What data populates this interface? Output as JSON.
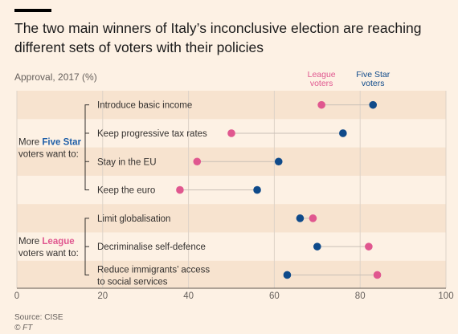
{
  "header": {
    "title": "The two main winners of Italy’s inconclusive election are reaching different sets of voters with their policies",
    "subtitle": "Approval, 2017 (%)"
  },
  "legend": {
    "league": [
      "League",
      "voters"
    ],
    "five_star": [
      "Five Star",
      "voters"
    ]
  },
  "groups": [
    {
      "prefix": "More ",
      "party": "Five Star",
      "rest": "voters want to:",
      "party_color": "#1f5fa8"
    },
    {
      "prefix": "More ",
      "party": "League",
      "rest": "voters want to:",
      "party_color": "#e0578f"
    }
  ],
  "colors": {
    "league": "#e0578f",
    "five_star": "#0f4a8a",
    "band": "#f7e3cf",
    "grid": "#ddd2c7",
    "connector": "#c9bfb6"
  },
  "footer": {
    "source": "Source: CISE",
    "credit": "© FT"
  },
  "chart_data": {
    "type": "dot",
    "xlim": [
      0,
      100
    ],
    "ticks": [
      0,
      20,
      40,
      60,
      80,
      100
    ],
    "series": [
      {
        "name": "League voters",
        "key": "league"
      },
      {
        "name": "Five Star voters",
        "key": "five_star"
      }
    ],
    "rows": [
      {
        "label": [
          "Introduce basic income"
        ],
        "league": 71,
        "five_star": 83,
        "group": 0
      },
      {
        "label": [
          "Keep progressive tax rates"
        ],
        "league": 50,
        "five_star": 76,
        "group": 0
      },
      {
        "label": [
          "Stay in the EU"
        ],
        "league": 42,
        "five_star": 61,
        "group": 0
      },
      {
        "label": [
          "Keep the euro"
        ],
        "league": 38,
        "five_star": 56,
        "group": 0
      },
      {
        "label": [
          "Limit globalisation"
        ],
        "league": 69,
        "five_star": 66,
        "group": 1
      },
      {
        "label": [
          "Decriminalise self-defence"
        ],
        "league": 82,
        "five_star": 70,
        "group": 1
      },
      {
        "label": [
          "Reduce immigrants’ access",
          "to social services"
        ],
        "league": 84,
        "five_star": 63,
        "group": 1
      }
    ]
  }
}
